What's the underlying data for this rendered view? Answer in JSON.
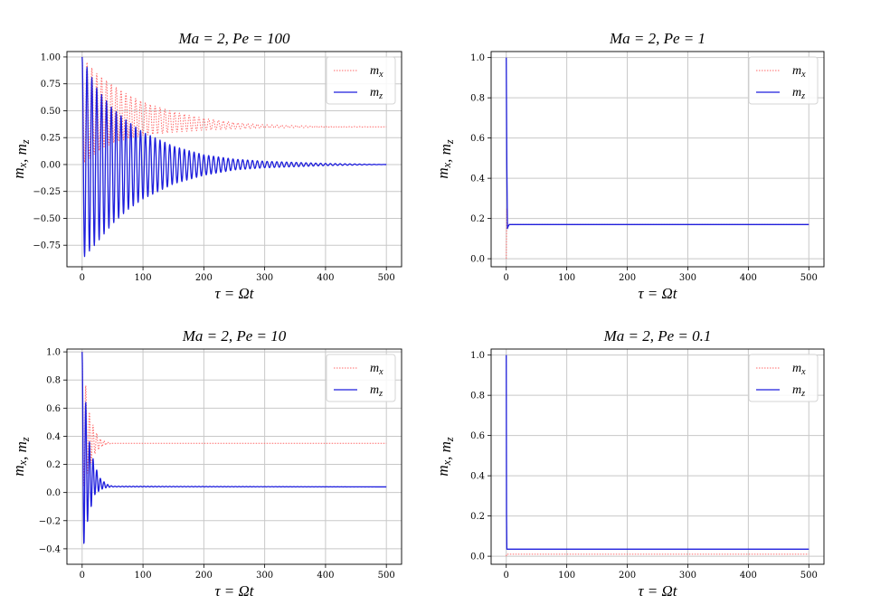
{
  "colors": {
    "mx": "#ff6a6a",
    "mz": "#1f1fdd",
    "grid": "#c8c8c8",
    "frame": "#000000"
  },
  "chart_data": [
    {
      "type": "line",
      "title": "Ma = 2, Pe = 100",
      "xlabel": "τ = Ωt",
      "ylabel": "m_x,  m_z",
      "xlim": [
        -25,
        525
      ],
      "ylim": [
        -0.95,
        1.05
      ],
      "xticks": [
        0,
        100,
        200,
        300,
        400,
        500
      ],
      "yticks": [
        -0.75,
        -0.5,
        -0.25,
        0.0,
        0.25,
        0.5,
        0.75,
        1.0
      ],
      "ytick_labels": [
        "−0.75",
        "−0.50",
        "−0.25",
        "0.00",
        "0.25",
        "0.50",
        "0.75",
        "1.00"
      ],
      "grid": true,
      "legend": "top-right",
      "series": [
        {
          "name": "m_x",
          "style": "dotted",
          "color": "#ff6a6a",
          "x": [
            0,
            25,
            50,
            75,
            100,
            150,
            200,
            250,
            300,
            400,
            500
          ],
          "envelope_upper": [
            1.0,
            0.84,
            0.74,
            0.65,
            0.58,
            0.49,
            0.43,
            0.39,
            0.37,
            0.355,
            0.35
          ],
          "envelope_lower": [
            0.0,
            0.12,
            0.2,
            0.24,
            0.27,
            0.3,
            0.32,
            0.33,
            0.34,
            0.345,
            0.35
          ]
        },
        {
          "name": "m_z",
          "style": "solid",
          "color": "#1f1fdd",
          "x": [
            0,
            25,
            50,
            75,
            100,
            150,
            200,
            250,
            300,
            400,
            500
          ],
          "envelope_upper": [
            1.0,
            0.7,
            0.52,
            0.4,
            0.3,
            0.17,
            0.09,
            0.05,
            0.03,
            0.01,
            0.0
          ],
          "envelope_lower": [
            -0.88,
            -0.72,
            -0.55,
            -0.42,
            -0.32,
            -0.18,
            -0.1,
            -0.05,
            -0.03,
            -0.01,
            0.0
          ]
        }
      ]
    },
    {
      "type": "line",
      "title": "Ma = 2, Pe = 1",
      "xlabel": "τ = Ωt",
      "ylabel": "m_x,  m_z",
      "xlim": [
        -25,
        525
      ],
      "ylim": [
        -0.04,
        1.03
      ],
      "xticks": [
        0,
        100,
        200,
        300,
        400,
        500
      ],
      "yticks": [
        0.0,
        0.2,
        0.4,
        0.6,
        0.8,
        1.0
      ],
      "ytick_labels": [
        "0.0",
        "0.2",
        "0.4",
        "0.6",
        "0.8",
        "1.0"
      ],
      "grid": true,
      "legend": "top-right",
      "series": [
        {
          "name": "m_x",
          "style": "dotted",
          "color": "#ff6a6a",
          "x": [
            0,
            1,
            2,
            3,
            5,
            500
          ],
          "y": [
            0.0,
            0.25,
            0.18,
            0.16,
            0.17,
            0.17
          ]
        },
        {
          "name": "m_z",
          "style": "solid",
          "color": "#1f1fdd",
          "x": [
            0,
            1,
            2,
            3,
            5,
            500
          ],
          "y": [
            1.0,
            0.45,
            0.15,
            0.16,
            0.17,
            0.17
          ]
        }
      ]
    },
    {
      "type": "line",
      "title": "Ma = 2, Pe = 10",
      "xlabel": "τ = Ωt",
      "ylabel": "m_x,  m_z",
      "xlim": [
        -25,
        525
      ],
      "ylim": [
        -0.51,
        1.02
      ],
      "xticks": [
        0,
        100,
        200,
        300,
        400,
        500
      ],
      "yticks": [
        -0.4,
        -0.2,
        0.0,
        0.2,
        0.4,
        0.6,
        0.8,
        1.0
      ],
      "ytick_labels": [
        "−0.4",
        "−0.2",
        "0.0",
        "0.2",
        "0.4",
        "0.6",
        "0.8",
        "1.0"
      ],
      "grid": true,
      "legend": "top-right",
      "series": [
        {
          "name": "m_x",
          "style": "dotted",
          "color": "#ff6a6a",
          "x": [
            0,
            10,
            20,
            30,
            40,
            50,
            500
          ],
          "envelope_upper": [
            1.0,
            0.6,
            0.45,
            0.38,
            0.36,
            0.35,
            0.35
          ],
          "envelope_lower": [
            0.0,
            0.15,
            0.27,
            0.32,
            0.34,
            0.35,
            0.35
          ]
        },
        {
          "name": "m_z",
          "style": "solid",
          "color": "#1f1fdd",
          "x": [
            0,
            10,
            20,
            30,
            40,
            50,
            500
          ],
          "envelope_upper": [
            1.0,
            0.4,
            0.2,
            0.1,
            0.06,
            0.045,
            0.04
          ],
          "envelope_lower": [
            -0.45,
            -0.18,
            -0.02,
            0.02,
            0.035,
            0.04,
            0.04
          ]
        }
      ]
    },
    {
      "type": "line",
      "title": "Ma = 2, Pe = 0.1",
      "xlabel": "τ = Ωt",
      "ylabel": "m_x,  m_z",
      "xlim": [
        -25,
        525
      ],
      "ylim": [
        -0.04,
        1.03
      ],
      "xticks": [
        0,
        100,
        200,
        300,
        400,
        500
      ],
      "yticks": [
        0.0,
        0.2,
        0.4,
        0.6,
        0.8,
        1.0
      ],
      "ytick_labels": [
        "0.0",
        "0.2",
        "0.4",
        "0.6",
        "0.8",
        "1.0"
      ],
      "grid": true,
      "legend": "top-right",
      "series": [
        {
          "name": "m_x",
          "style": "dotted",
          "color": "#ff6a6a",
          "x": [
            0,
            0.5,
            1,
            500
          ],
          "y": [
            0.0,
            0.01,
            0.01,
            0.01
          ]
        },
        {
          "name": "m_z",
          "style": "solid",
          "color": "#1f1fdd",
          "x": [
            0,
            0.5,
            1,
            500
          ],
          "y": [
            1.0,
            0.2,
            0.035,
            0.035
          ]
        }
      ]
    }
  ]
}
